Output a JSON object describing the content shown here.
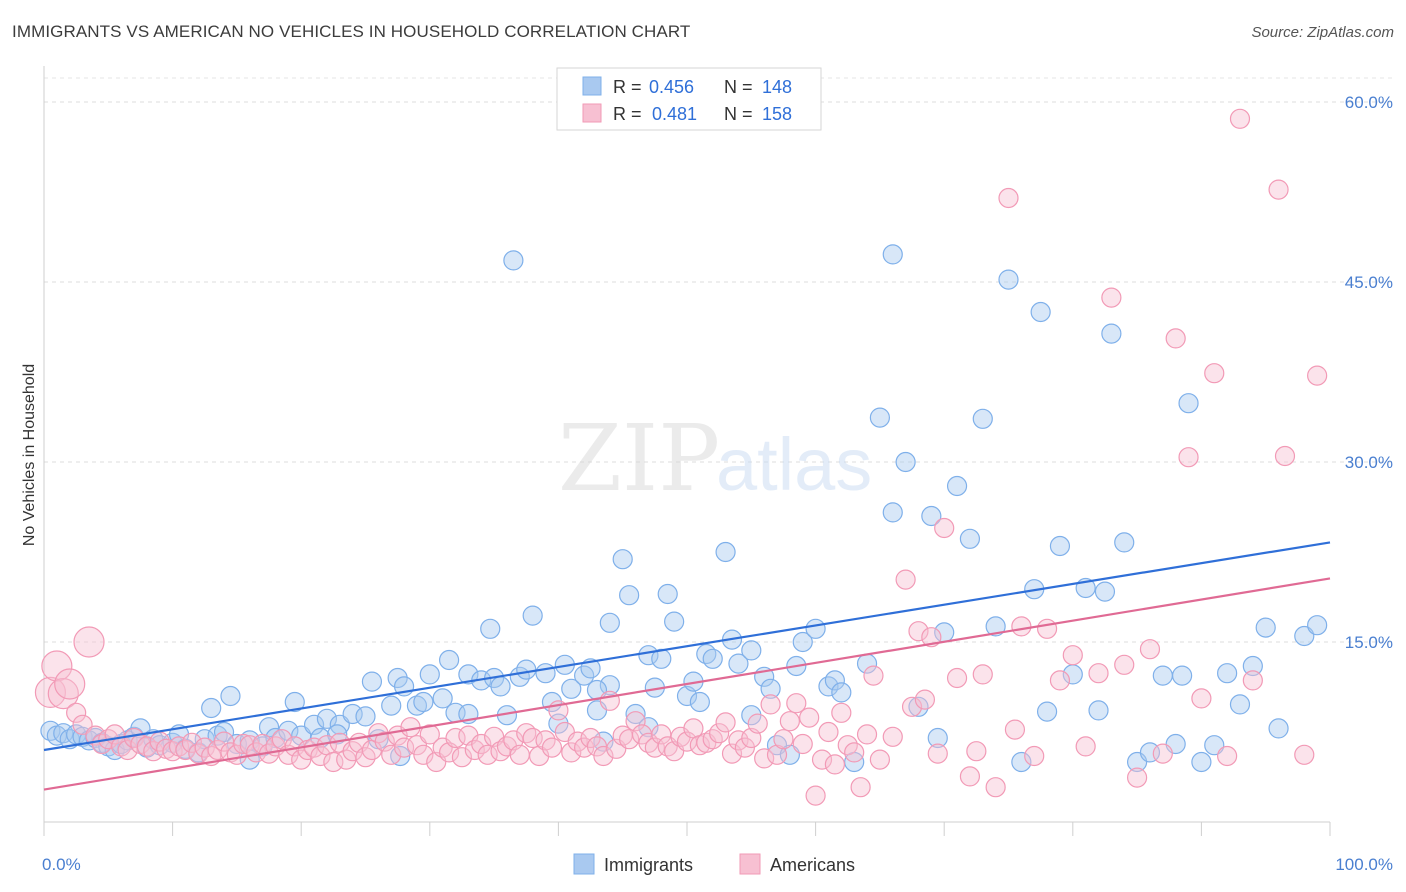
{
  "title": "IMMIGRANTS VS AMERICAN NO VEHICLES IN HOUSEHOLD CORRELATION CHART",
  "source": "Source: ZipAtlas.com",
  "watermark": {
    "zip": "ZIP",
    "atlas": "atlas"
  },
  "chart_data": {
    "type": "scatter",
    "ylabel": "No Vehicles in Household",
    "xlim": [
      0,
      100
    ],
    "ylim": [
      0,
      62
    ],
    "y_ticks": [
      15,
      30,
      45,
      60
    ],
    "y_tick_labels": [
      "15.0%",
      "30.0%",
      "45.0%",
      "60.0%"
    ],
    "x_tick_labels": [
      "0.0%",
      "100.0%"
    ],
    "grid": true,
    "legend": {
      "placement": "top-center",
      "entries": [
        {
          "r_label": "R =",
          "r_value": "0.456",
          "n_label": "N =",
          "n_value": "148"
        },
        {
          "r_label": "R =",
          "r_value": "0.481",
          "n_label": "N =",
          "n_value": "158"
        }
      ]
    },
    "series": [
      {
        "name": "Immigrants",
        "color": "#7fb0ea",
        "fill": "#a9c9f0",
        "line_color": "#2f6fd8",
        "trend": [
          [
            0,
            6.0
          ],
          [
            100,
            23.3
          ]
        ],
        "points": [
          [
            0.5,
            7.6
          ],
          [
            1,
            7.2
          ],
          [
            1.5,
            7.4
          ],
          [
            2,
            6.9
          ],
          [
            2.5,
            7.3
          ],
          [
            3,
            7.1
          ],
          [
            3.5,
            6.8
          ],
          [
            4,
            7.0
          ],
          [
            4.5,
            6.6
          ],
          [
            5,
            6.3
          ],
          [
            5.5,
            6.0
          ],
          [
            6,
            6.5
          ],
          [
            6.5,
            6.8
          ],
          [
            7,
            7.1
          ],
          [
            7.5,
            7.8
          ],
          [
            8,
            6.2
          ],
          [
            8.5,
            6.9
          ],
          [
            9,
            6.4
          ],
          [
            10,
            6.6
          ],
          [
            10.5,
            7.3
          ],
          [
            11,
            6.1
          ],
          [
            12,
            5.8
          ],
          [
            12.5,
            6.9
          ],
          [
            13,
            9.5
          ],
          [
            13.5,
            7.2
          ],
          [
            14,
            7.5
          ],
          [
            14.5,
            10.5
          ],
          [
            15,
            6.5
          ],
          [
            16,
            6.8
          ],
          [
            17,
            6.3
          ],
          [
            17.5,
            7.9
          ],
          [
            18,
            7.0
          ],
          [
            19,
            7.6
          ],
          [
            19.5,
            10.0
          ],
          [
            20,
            7.2
          ],
          [
            21,
            8.1
          ],
          [
            21.5,
            7.0
          ],
          [
            22,
            8.6
          ],
          [
            23,
            8.1
          ],
          [
            24,
            9.0
          ],
          [
            25,
            8.8
          ],
          [
            25.5,
            11.7
          ],
          [
            26,
            6.9
          ],
          [
            27,
            9.7
          ],
          [
            27.5,
            12.0
          ],
          [
            28,
            11.3
          ],
          [
            29,
            9.7
          ],
          [
            29.5,
            10.0
          ],
          [
            30,
            12.3
          ],
          [
            31,
            10.3
          ],
          [
            31.5,
            13.5
          ],
          [
            32,
            9.1
          ],
          [
            33,
            12.3
          ],
          [
            34,
            11.8
          ],
          [
            35,
            12.0
          ],
          [
            35.5,
            11.3
          ],
          [
            36,
            8.9
          ],
          [
            37,
            12.1
          ],
          [
            37.5,
            12.7
          ],
          [
            38,
            17.2
          ],
          [
            39,
            12.4
          ],
          [
            40,
            8.2
          ],
          [
            40.5,
            13.1
          ],
          [
            41,
            11.1
          ],
          [
            42,
            12.2
          ],
          [
            42.5,
            12.8
          ],
          [
            43,
            9.3
          ],
          [
            43.5,
            6.7
          ],
          [
            44,
            11.4
          ],
          [
            45,
            21.9
          ],
          [
            45.5,
            18.9
          ],
          [
            46,
            9.0
          ],
          [
            47,
            13.9
          ],
          [
            47.5,
            11.2
          ],
          [
            48,
            13.6
          ],
          [
            48.5,
            19.0
          ],
          [
            49,
            16.7
          ],
          [
            50,
            10.5
          ],
          [
            50.5,
            11.7
          ],
          [
            51,
            10.0
          ],
          [
            51.5,
            14.0
          ],
          [
            52,
            13.6
          ],
          [
            53,
            22.5
          ],
          [
            53.5,
            15.2
          ],
          [
            54,
            13.2
          ],
          [
            55,
            14.3
          ],
          [
            56,
            12.1
          ],
          [
            56.5,
            11.1
          ],
          [
            57,
            6.4
          ],
          [
            58,
            5.6
          ],
          [
            58.5,
            13.0
          ],
          [
            59,
            15.0
          ],
          [
            60,
            16.1
          ],
          [
            61,
            11.3
          ],
          [
            61.5,
            11.8
          ],
          [
            62,
            10.8
          ],
          [
            63,
            5.0
          ],
          [
            64,
            13.2
          ],
          [
            65,
            33.7
          ],
          [
            66,
            25.8
          ],
          [
            67,
            30.0
          ],
          [
            68,
            9.6
          ],
          [
            69,
            25.5
          ],
          [
            69.5,
            7.0
          ],
          [
            70,
            15.8
          ],
          [
            71,
            28.0
          ],
          [
            72,
            23.6
          ],
          [
            73,
            33.6
          ],
          [
            74,
            16.3
          ],
          [
            75,
            45.2
          ],
          [
            76,
            5.0
          ],
          [
            77,
            19.4
          ],
          [
            77.5,
            42.5
          ],
          [
            78,
            9.2
          ],
          [
            79,
            23.0
          ],
          [
            80,
            12.3
          ],
          [
            81,
            19.5
          ],
          [
            82,
            9.3
          ],
          [
            83,
            40.7
          ],
          [
            84,
            23.3
          ],
          [
            85,
            5.0
          ],
          [
            86,
            5.8
          ],
          [
            87,
            12.2
          ],
          [
            88,
            6.5
          ],
          [
            89,
            34.9
          ],
          [
            90,
            5.0
          ],
          [
            91,
            6.4
          ],
          [
            92,
            12.4
          ],
          [
            93,
            9.8
          ],
          [
            94,
            13.0
          ],
          [
            95,
            16.2
          ],
          [
            96,
            7.8
          ],
          [
            98,
            15.5
          ],
          [
            99,
            16.4
          ],
          [
            47,
            7.9
          ],
          [
            36.5,
            46.8
          ],
          [
            88.5,
            12.2
          ],
          [
            44,
            16.6
          ],
          [
            66,
            47.3
          ],
          [
            33,
            9.0
          ],
          [
            27.7,
            5.5
          ],
          [
            82.5,
            19.2
          ],
          [
            34.7,
            16.1
          ],
          [
            22.8,
            7.3
          ],
          [
            16,
            5.2
          ],
          [
            43,
            11.0
          ],
          [
            55,
            8.9
          ],
          [
            39.5,
            10.0
          ]
        ]
      },
      {
        "name": "Americans",
        "color": "#f29ab6",
        "fill": "#f7c0d2",
        "line_color": "#e06a94",
        "trend": [
          [
            0,
            2.7
          ],
          [
            100,
            20.3
          ]
        ],
        "points": [
          [
            0.5,
            10.8
          ],
          [
            1,
            13.0
          ],
          [
            1.5,
            10.7
          ],
          [
            2,
            11.5
          ],
          [
            2.5,
            9.1
          ],
          [
            3,
            8.1
          ],
          [
            3.5,
            15.0
          ],
          [
            4,
            7.2
          ],
          [
            4.5,
            6.5
          ],
          [
            5,
            6.9
          ],
          [
            5.5,
            7.3
          ],
          [
            6,
            6.3
          ],
          [
            6.5,
            6.0
          ],
          [
            7,
            7.0
          ],
          [
            7.5,
            6.5
          ],
          [
            8,
            6.3
          ],
          [
            8.5,
            5.9
          ],
          [
            9,
            6.7
          ],
          [
            9.5,
            6.1
          ],
          [
            10,
            5.9
          ],
          [
            10.5,
            6.3
          ],
          [
            11,
            6.0
          ],
          [
            11.5,
            6.6
          ],
          [
            12,
            5.7
          ],
          [
            12.5,
            6.2
          ],
          [
            13,
            5.5
          ],
          [
            13.5,
            6.0
          ],
          [
            14,
            6.7
          ],
          [
            14.5,
            5.8
          ],
          [
            15,
            5.6
          ],
          [
            15.5,
            6.5
          ],
          [
            16,
            6.4
          ],
          [
            16.5,
            5.8
          ],
          [
            17,
            6.5
          ],
          [
            17.5,
            5.7
          ],
          [
            18,
            6.3
          ],
          [
            18.5,
            6.9
          ],
          [
            19,
            5.6
          ],
          [
            19.5,
            6.3
          ],
          [
            20,
            5.2
          ],
          [
            20.5,
            6.0
          ],
          [
            21,
            6.2
          ],
          [
            21.5,
            5.5
          ],
          [
            22,
            6.4
          ],
          [
            22.5,
            5.0
          ],
          [
            23,
            6.6
          ],
          [
            23.5,
            5.2
          ],
          [
            24,
            5.9
          ],
          [
            24.5,
            6.6
          ],
          [
            25,
            5.4
          ],
          [
            25.5,
            6.0
          ],
          [
            26,
            7.4
          ],
          [
            26.5,
            6.7
          ],
          [
            27,
            5.6
          ],
          [
            27.5,
            7.2
          ],
          [
            28,
            6.2
          ],
          [
            28.5,
            7.9
          ],
          [
            29,
            6.4
          ],
          [
            29.5,
            5.6
          ],
          [
            30,
            7.3
          ],
          [
            30.5,
            5.0
          ],
          [
            31,
            6.2
          ],
          [
            31.5,
            5.8
          ],
          [
            32,
            7.0
          ],
          [
            32.5,
            5.4
          ],
          [
            33,
            7.2
          ],
          [
            33.5,
            6.0
          ],
          [
            34,
            6.5
          ],
          [
            34.5,
            5.6
          ],
          [
            35,
            7.1
          ],
          [
            35.5,
            5.9
          ],
          [
            36,
            6.3
          ],
          [
            36.5,
            6.8
          ],
          [
            37,
            5.6
          ],
          [
            37.5,
            7.4
          ],
          [
            38,
            7.0
          ],
          [
            38.5,
            5.5
          ],
          [
            39,
            6.8
          ],
          [
            39.5,
            6.2
          ],
          [
            40,
            9.3
          ],
          [
            40.5,
            7.5
          ],
          [
            41,
            5.8
          ],
          [
            41.5,
            6.7
          ],
          [
            42,
            6.2
          ],
          [
            42.5,
            7.0
          ],
          [
            43,
            6.3
          ],
          [
            43.5,
            5.5
          ],
          [
            44,
            10.1
          ],
          [
            44.5,
            6.1
          ],
          [
            45,
            7.2
          ],
          [
            45.5,
            6.9
          ],
          [
            46,
            8.4
          ],
          [
            46.5,
            7.3
          ],
          [
            47,
            6.6
          ],
          [
            47.5,
            6.2
          ],
          [
            48,
            7.3
          ],
          [
            48.5,
            6.3
          ],
          [
            49,
            5.9
          ],
          [
            49.5,
            7.1
          ],
          [
            50,
            6.7
          ],
          [
            50.5,
            7.8
          ],
          [
            51,
            6.4
          ],
          [
            51.5,
            6.6
          ],
          [
            52,
            6.9
          ],
          [
            52.5,
            7.4
          ],
          [
            53,
            8.3
          ],
          [
            53.5,
            5.7
          ],
          [
            54,
            6.8
          ],
          [
            54.5,
            6.2
          ],
          [
            55,
            7.0
          ],
          [
            55.5,
            8.2
          ],
          [
            56,
            5.3
          ],
          [
            56.5,
            9.8
          ],
          [
            57,
            5.6
          ],
          [
            57.5,
            6.9
          ],
          [
            58,
            8.4
          ],
          [
            58.5,
            9.9
          ],
          [
            59,
            6.5
          ],
          [
            59.5,
            8.7
          ],
          [
            60,
            2.2
          ],
          [
            60.5,
            5.2
          ],
          [
            61,
            7.5
          ],
          [
            61.5,
            4.8
          ],
          [
            62,
            9.1
          ],
          [
            62.5,
            6.4
          ],
          [
            63,
            5.8
          ],
          [
            63.5,
            2.9
          ],
          [
            64,
            7.3
          ],
          [
            64.5,
            12.2
          ],
          [
            65,
            5.2
          ],
          [
            66,
            7.1
          ],
          [
            67,
            20.2
          ],
          [
            67.5,
            9.6
          ],
          [
            68,
            15.9
          ],
          [
            68.5,
            10.2
          ],
          [
            69,
            15.4
          ],
          [
            69.5,
            5.7
          ],
          [
            70,
            24.5
          ],
          [
            71,
            12.0
          ],
          [
            72,
            3.8
          ],
          [
            72.5,
            5.9
          ],
          [
            73,
            12.3
          ],
          [
            74,
            2.9
          ],
          [
            75,
            52.0
          ],
          [
            75.5,
            7.7
          ],
          [
            76,
            16.3
          ],
          [
            77,
            5.5
          ],
          [
            78,
            16.1
          ],
          [
            79,
            11.8
          ],
          [
            80,
            13.9
          ],
          [
            81,
            6.3
          ],
          [
            82,
            12.4
          ],
          [
            83,
            43.7
          ],
          [
            84,
            13.1
          ],
          [
            85,
            3.7
          ],
          [
            86,
            14.4
          ],
          [
            87,
            5.7
          ],
          [
            88,
            40.3
          ],
          [
            89,
            30.4
          ],
          [
            90,
            10.3
          ],
          [
            91,
            37.4
          ],
          [
            92,
            5.5
          ],
          [
            93,
            58.6
          ],
          [
            94,
            11.8
          ],
          [
            96,
            52.7
          ],
          [
            96.5,
            30.5
          ],
          [
            98,
            5.6
          ],
          [
            99,
            37.2
          ]
        ]
      }
    ]
  },
  "bottom_legend": [
    "Immigrants",
    "Americans"
  ]
}
